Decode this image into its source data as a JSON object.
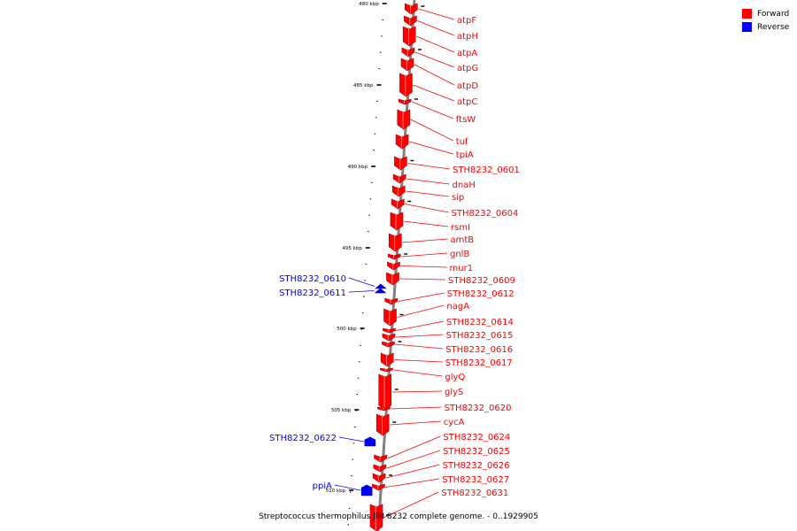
{
  "legend": {
    "forward_label": "Forward",
    "reverse_label": "Reverse",
    "forward_color": "#ff0000",
    "reverse_color": "#0000ff"
  },
  "caption": "Streptococcus thermophilus JIM 8232 complete genome. - 0..1929905",
  "axis": {
    "ticks": [
      "480 kbp",
      "485 kbp",
      "490 kbp",
      "495 kbp",
      "500 kbp",
      "505 kbp",
      "510 kbp"
    ]
  },
  "genes": [
    {
      "label": "atpF",
      "strand": "forward"
    },
    {
      "label": "atpH",
      "strand": "forward"
    },
    {
      "label": "atpA",
      "strand": "forward"
    },
    {
      "label": "atpG",
      "strand": "forward"
    },
    {
      "label": "atpD",
      "strand": "forward"
    },
    {
      "label": "atpC",
      "strand": "forward"
    },
    {
      "label": "ftsW",
      "strand": "forward"
    },
    {
      "label": "tuf",
      "strand": "forward"
    },
    {
      "label": "tpiA",
      "strand": "forward"
    },
    {
      "label": "STH8232_0601",
      "strand": "forward"
    },
    {
      "label": "dnaH",
      "strand": "forward"
    },
    {
      "label": "sip",
      "strand": "forward"
    },
    {
      "label": "STH8232_0604",
      "strand": "forward"
    },
    {
      "label": "rsmI",
      "strand": "forward"
    },
    {
      "label": "amtB",
      "strand": "forward"
    },
    {
      "label": "gnlB",
      "strand": "forward"
    },
    {
      "label": "mur1",
      "strand": "forward"
    },
    {
      "label": "STH8232_0609",
      "strand": "forward"
    },
    {
      "label": "STH8232_0610",
      "strand": "reverse"
    },
    {
      "label": "STH8232_0611",
      "strand": "reverse"
    },
    {
      "label": "STH8232_0612",
      "strand": "forward"
    },
    {
      "label": "nagA",
      "strand": "forward"
    },
    {
      "label": "STH8232_0614",
      "strand": "forward"
    },
    {
      "label": "STH8232_0615",
      "strand": "forward"
    },
    {
      "label": "STH8232_0616",
      "strand": "forward"
    },
    {
      "label": "STH8232_0617",
      "strand": "forward"
    },
    {
      "label": "glyQ",
      "strand": "forward"
    },
    {
      "label": "glyS",
      "strand": "forward"
    },
    {
      "label": "STH8232_0620",
      "strand": "forward"
    },
    {
      "label": "STH8232_0622",
      "strand": "reverse"
    },
    {
      "label": "cycA",
      "strand": "forward"
    },
    {
      "label": "STH8232_0624",
      "strand": "forward"
    },
    {
      "label": "STH8232_0625",
      "strand": "forward"
    },
    {
      "label": "STH8232_0626",
      "strand": "forward"
    },
    {
      "label": "STH8232_0627",
      "strand": "forward"
    },
    {
      "label": "ppiA",
      "strand": "reverse"
    },
    {
      "label": "STH8232_0631",
      "strand": "forward"
    }
  ]
}
